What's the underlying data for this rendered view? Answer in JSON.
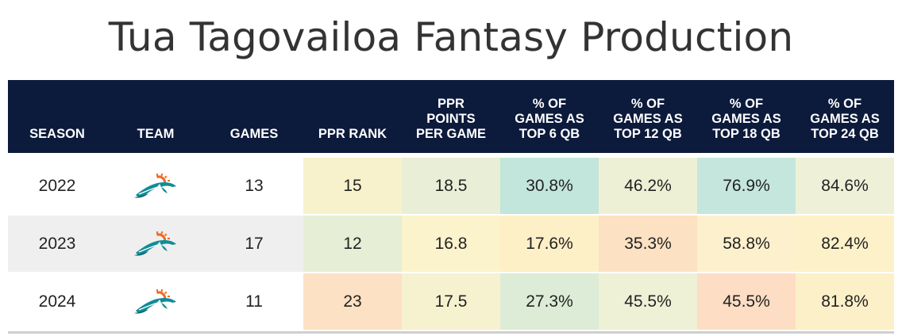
{
  "title": "Tua Tagovailoa Fantasy Production",
  "headers": [
    "SEASON",
    "TEAM",
    "GAMES",
    "PPR RANK",
    "PPR\nPOINTS\nPER GAME",
    "% OF\nGAMES AS\nTOP 6 QB",
    "% OF\nGAMES AS\nTOP 12 QB",
    "% OF\nGAMES AS\nTOP 18 QB",
    "% OF\nGAMES AS\nTOP 24 QB"
  ],
  "team_logo_icon": "dolphins-logo-icon",
  "colors": {
    "header_bg": "#0c1a3b",
    "logo_aqua": "#0f8d96",
    "logo_orange": "#f26a21"
  },
  "rows": [
    {
      "season": "2022",
      "games": "13",
      "cells": [
        {
          "value": "15",
          "color": "#f7f2cc"
        },
        {
          "value": "18.5",
          "color": "#e9efd7"
        },
        {
          "value": "30.8%",
          "color": "#c2e5dc"
        },
        {
          "value": "46.2%",
          "color": "#eef0d6"
        },
        {
          "value": "76.9%",
          "color": "#c4e6dd"
        },
        {
          "value": "84.6%",
          "color": "#eef1d8"
        }
      ]
    },
    {
      "season": "2023",
      "games": "17",
      "cells": [
        {
          "value": "12",
          "color": "#e6eed5"
        },
        {
          "value": "16.8",
          "color": "#fbf3cc"
        },
        {
          "value": "17.6%",
          "color": "#fdefc6"
        },
        {
          "value": "35.3%",
          "color": "#fde1c3"
        },
        {
          "value": "58.8%",
          "color": "#fdf0cc"
        },
        {
          "value": "82.4%",
          "color": "#fcf1c9"
        }
      ]
    },
    {
      "season": "2024",
      "games": "11",
      "cells": [
        {
          "value": "23",
          "color": "#fde1c4"
        },
        {
          "value": "17.5",
          "color": "#f6f2cf"
        },
        {
          "value": "27.3%",
          "color": "#dcecd6"
        },
        {
          "value": "45.5%",
          "color": "#eef1d6"
        },
        {
          "value": "45.5%",
          "color": "#fdddc3"
        },
        {
          "value": "81.8%",
          "color": "#fcf0c8"
        }
      ]
    }
  ]
}
